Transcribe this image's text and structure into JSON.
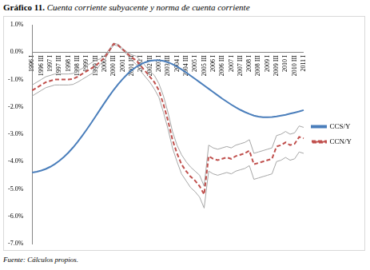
{
  "chart_data": {
    "type": "line",
    "title": "Gráfico 11.",
    "subtitle": "Cuenta corriente subyacente y norma de cuenta corriente",
    "source": "Fuente: Cálculos propios.",
    "categories": [
      "1996 I",
      null,
      "1996 III",
      null,
      "1997 I",
      null,
      "1997 III",
      null,
      "1998 I",
      null,
      "1998 III",
      null,
      "1999 I",
      null,
      "1999 III",
      null,
      "2000 I",
      null,
      "2000 III",
      null,
      "2001 I",
      null,
      "2001 III",
      null,
      "2002 I",
      null,
      "2002 III",
      null,
      "2003 I",
      null,
      "2003 III",
      null,
      "2004 I",
      null,
      "2004 III",
      null,
      "2005 I",
      null,
      "2005 III",
      null,
      "2006 I",
      null,
      "2006 III",
      null,
      "2007 I",
      null,
      "2007 III",
      null,
      "2008 I",
      null,
      "2008 III",
      null,
      "2009 I",
      null,
      "2009 III",
      null,
      "2010 I",
      null,
      "2010 III",
      null,
      "2011 I"
    ],
    "series": [
      {
        "name": "CCS/Y",
        "color": "#4a7ebb",
        "line_style": "solid",
        "marker": "none",
        "values": [
          -4.4,
          -4.37,
          -4.33,
          -4.27,
          -4.19,
          -4.09,
          -3.97,
          -3.83,
          -3.67,
          -3.49,
          -3.29,
          -3.07,
          -2.84,
          -2.6,
          -2.35,
          -2.1,
          -1.85,
          -1.61,
          -1.38,
          -1.17,
          -0.98,
          -0.81,
          -0.66,
          -0.54,
          -0.44,
          -0.37,
          -0.32,
          -0.3,
          -0.3,
          -0.32,
          -0.37,
          -0.44,
          -0.53,
          -0.63,
          -0.74,
          -0.86,
          -0.98,
          -1.1,
          -1.22,
          -1.34,
          -1.46,
          -1.58,
          -1.7,
          -1.81,
          -1.92,
          -2.02,
          -2.11,
          -2.19,
          -2.26,
          -2.32,
          -2.36,
          -2.38,
          -2.38,
          -2.37,
          -2.35,
          -2.32,
          -2.29,
          -2.25,
          -2.21,
          -2.17,
          -2.12
        ]
      },
      {
        "name": "CCN/Y",
        "color": "#c0504d",
        "line_style": "dashed",
        "marker": "none",
        "values": [
          -1.4,
          -1.3,
          -1.2,
          -1.1,
          -1.05,
          -1.0,
          -1.0,
          -1.0,
          -1.0,
          -0.98,
          -0.9,
          -0.8,
          -0.7,
          -0.6,
          -0.5,
          -0.35,
          -0.2,
          0.05,
          0.3,
          0.25,
          0.1,
          -0.05,
          -0.2,
          -0.3,
          -0.5,
          -0.7,
          -0.9,
          -1.1,
          -1.4,
          -1.9,
          -2.5,
          -3.2,
          -3.7,
          -4.1,
          -4.35,
          -4.55,
          -4.7,
          -4.9,
          -5.2,
          -3.8,
          -3.9,
          -3.95,
          -3.9,
          -3.85,
          -3.9,
          -3.8,
          -3.75,
          -3.7,
          -3.6,
          -4.1,
          -4.05,
          -4.0,
          -3.95,
          -3.9,
          -3.45,
          -3.4,
          -3.3,
          -3.4,
          -3.35,
          -3.1,
          -3.15
        ]
      },
      {
        "color": "#a6a6a6",
        "line_style": "solid",
        "marker": "none",
        "values": [
          -1.2,
          -1.1,
          -1.0,
          -0.9,
          -0.85,
          -0.8,
          -0.8,
          -0.8,
          -0.8,
          -0.78,
          -0.7,
          -0.6,
          -0.5,
          -0.4,
          -0.3,
          -0.25,
          -0.12,
          0.1,
          0.33,
          0.28,
          0.13,
          0.0,
          -0.1,
          -0.15,
          -0.3,
          -0.5,
          -0.7,
          -0.85,
          -1.15,
          -1.6,
          -2.2,
          -2.9,
          -3.4,
          -3.75,
          -4.0,
          -4.2,
          -4.35,
          -4.5,
          -4.9,
          -3.4,
          -3.5,
          -3.55,
          -3.5,
          -3.45,
          -3.5,
          -3.4,
          -3.35,
          -3.3,
          -3.2,
          -3.7,
          -3.65,
          -3.6,
          -3.55,
          -3.5,
          -3.05,
          -3.0,
          -2.9,
          -3.0,
          -2.95,
          -2.7,
          -2.75
        ]
      },
      {
        "color": "#a6a6a6",
        "line_style": "solid",
        "marker": "none",
        "values": [
          -1.6,
          -1.5,
          -1.4,
          -1.3,
          -1.25,
          -1.2,
          -1.2,
          -1.2,
          -1.2,
          -1.18,
          -1.1,
          -1.0,
          -0.9,
          -0.8,
          -0.7,
          -0.45,
          -0.28,
          0.0,
          0.27,
          0.22,
          0.07,
          -0.1,
          -0.3,
          -0.45,
          -0.7,
          -0.9,
          -1.1,
          -1.35,
          -1.65,
          -2.2,
          -2.8,
          -3.5,
          -4.0,
          -4.45,
          -4.7,
          -4.95,
          -5.1,
          -5.3,
          -5.7,
          -4.35,
          -4.45,
          -4.5,
          -4.45,
          -4.4,
          -4.45,
          -4.35,
          -4.3,
          -4.25,
          -4.15,
          -4.65,
          -4.6,
          -4.55,
          -4.5,
          -4.45,
          -4.0,
          -3.95,
          -3.85,
          -3.95,
          -3.9,
          -3.65,
          -3.7
        ]
      }
    ],
    "ylim": [
      -7,
      1
    ],
    "yticks": [
      {
        "value": 1,
        "label": "1.0%"
      },
      {
        "value": 0,
        "label": "0.0%"
      },
      {
        "value": -1,
        "label": "-1.0%"
      },
      {
        "value": -2,
        "label": "-2.0%"
      },
      {
        "value": -3,
        "label": "-3.0%"
      },
      {
        "value": -4,
        "label": "-4.0%"
      },
      {
        "value": -5,
        "label": "-5.0%"
      },
      {
        "value": -6,
        "label": "-6.0%"
      },
      {
        "value": -7,
        "label": "-7.0%"
      }
    ],
    "grid": false,
    "legend": "right"
  }
}
